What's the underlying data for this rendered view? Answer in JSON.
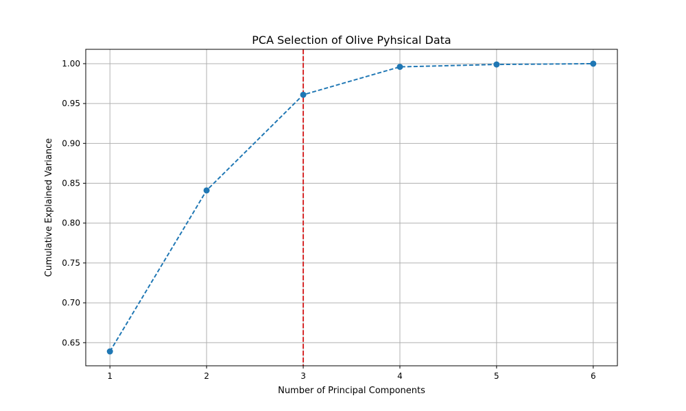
{
  "chart_data": {
    "type": "line",
    "title": "PCA Selection of Olive Pyhsical Data",
    "xlabel": "Number of Principal Components",
    "ylabel": "Cumulative Explained Variance",
    "x": [
      1,
      2,
      3,
      4,
      5,
      6
    ],
    "series": [
      {
        "values": [
          0.639,
          0.841,
          0.961,
          0.996,
          0.999,
          1.0
        ],
        "color": "#1f77b4",
        "line_style": "dashed",
        "marker": "circle"
      }
    ],
    "x_ticks": [
      "1",
      "2",
      "3",
      "4",
      "5",
      "6"
    ],
    "y_ticks": [
      "0.65",
      "0.70",
      "0.75",
      "0.80",
      "0.85",
      "0.90",
      "0.95",
      "1.00"
    ],
    "xlim": [
      0.75,
      6.25
    ],
    "ylim": [
      0.621,
      1.018
    ],
    "grid": true,
    "reference_line": {
      "orientation": "vertical",
      "x": 3,
      "color": "#d62728",
      "line_style": "dashed"
    }
  }
}
